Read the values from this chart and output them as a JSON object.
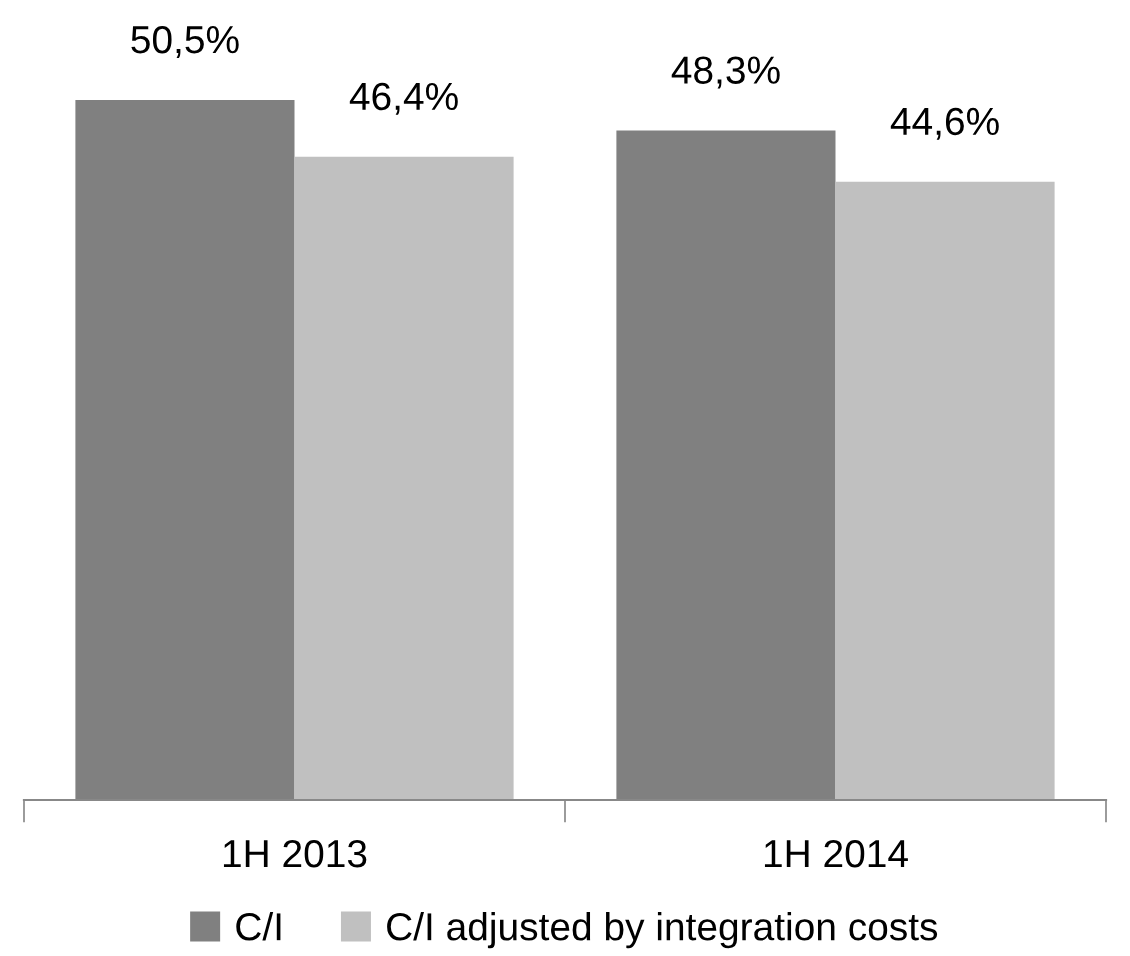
{
  "chart_data": {
    "type": "bar",
    "categories": [
      "1H 2013",
      "1H 2014"
    ],
    "series": [
      {
        "name": "C/I",
        "color": "#808080",
        "values": [
          50.5,
          48.3
        ],
        "value_labels": [
          "50,5%",
          "48,3%"
        ]
      },
      {
        "name": "C/I adjusted by integration costs",
        "color": "#c0c0c0",
        "values": [
          46.4,
          44.6
        ],
        "value_labels": [
          "46,4%",
          "44,6%"
        ]
      }
    ],
    "legend": "bottom"
  }
}
